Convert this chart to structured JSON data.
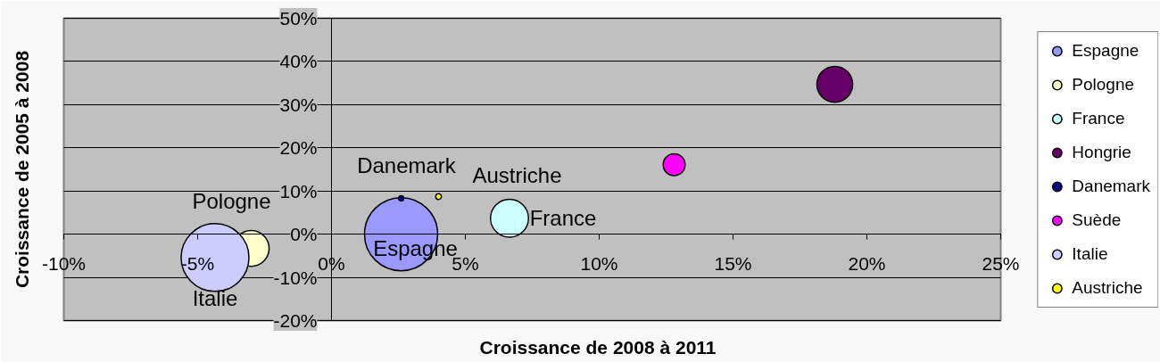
{
  "chart_data": {
    "type": "bubble",
    "xlabel": "Croissance de 2008 à 2011",
    "ylabel": "Croissance de 2005 à 2008",
    "xlim": [
      -10,
      25
    ],
    "ylim": [
      -20,
      50
    ],
    "xticks": [
      {
        "value": -10,
        "label": "-10%"
      },
      {
        "value": -5,
        "label": "-5%"
      },
      {
        "value": 0,
        "label": "0%"
      },
      {
        "value": 5,
        "label": "5%"
      },
      {
        "value": 10,
        "label": "10%"
      },
      {
        "value": 15,
        "label": "15%"
      },
      {
        "value": 20,
        "label": "20%"
      },
      {
        "value": 25,
        "label": "25%"
      }
    ],
    "yticks": [
      {
        "value": -20,
        "label": "-20%"
      },
      {
        "value": -10,
        "label": "-10%"
      },
      {
        "value": 0,
        "label": "0%"
      },
      {
        "value": 10,
        "label": "10%"
      },
      {
        "value": 20,
        "label": "20%"
      },
      {
        "value": 30,
        "label": "30%"
      },
      {
        "value": 40,
        "label": "40%"
      },
      {
        "value": 50,
        "label": "50%"
      }
    ],
    "grid": "y",
    "legend": "right",
    "marker": "circle",
    "series": [
      {
        "name": "Espagne",
        "color": "#9999ff",
        "x": [
          2.6
        ],
        "values": [
          0.0
        ],
        "sizes": [
          1
        ],
        "value_labels": [
          "Espagne"
        ]
      },
      {
        "name": "Pologne",
        "color": "#ffffcc",
        "x": [
          -3.0
        ],
        "values": [
          -3.3
        ],
        "sizes": [
          0.24
        ],
        "value_labels": [
          "Pologne"
        ]
      },
      {
        "name": "France",
        "color": "#ccffff",
        "x": [
          6.65
        ],
        "values": [
          3.7
        ],
        "sizes": [
          0.27
        ],
        "value_labels": [
          "France"
        ]
      },
      {
        "name": "Hongrie",
        "color": "#660066",
        "x": [
          18.8
        ],
        "values": [
          34.7
        ],
        "sizes": [
          0.24
        ]
      },
      {
        "name": "Danemark",
        "color": "#000080",
        "x": [
          2.6
        ],
        "values": [
          8.3
        ],
        "sizes": [
          0.005
        ],
        "value_labels": [
          "Danemark"
        ]
      },
      {
        "name": "Suède",
        "color": "#ff00ff",
        "x": [
          12.8
        ],
        "values": [
          16.1
        ],
        "sizes": [
          0.09
        ]
      },
      {
        "name": "Italie",
        "color": "#ccccff",
        "x": [
          -4.35
        ],
        "values": [
          -5.4
        ],
        "sizes": [
          0.86
        ],
        "value_labels": [
          "Italie"
        ]
      },
      {
        "name": "Austriche",
        "color": "#ffff00",
        "x": [
          4.0
        ],
        "values": [
          8.7
        ],
        "sizes": [
          0.006
        ],
        "value_labels": [
          "Austriche"
        ]
      }
    ]
  }
}
